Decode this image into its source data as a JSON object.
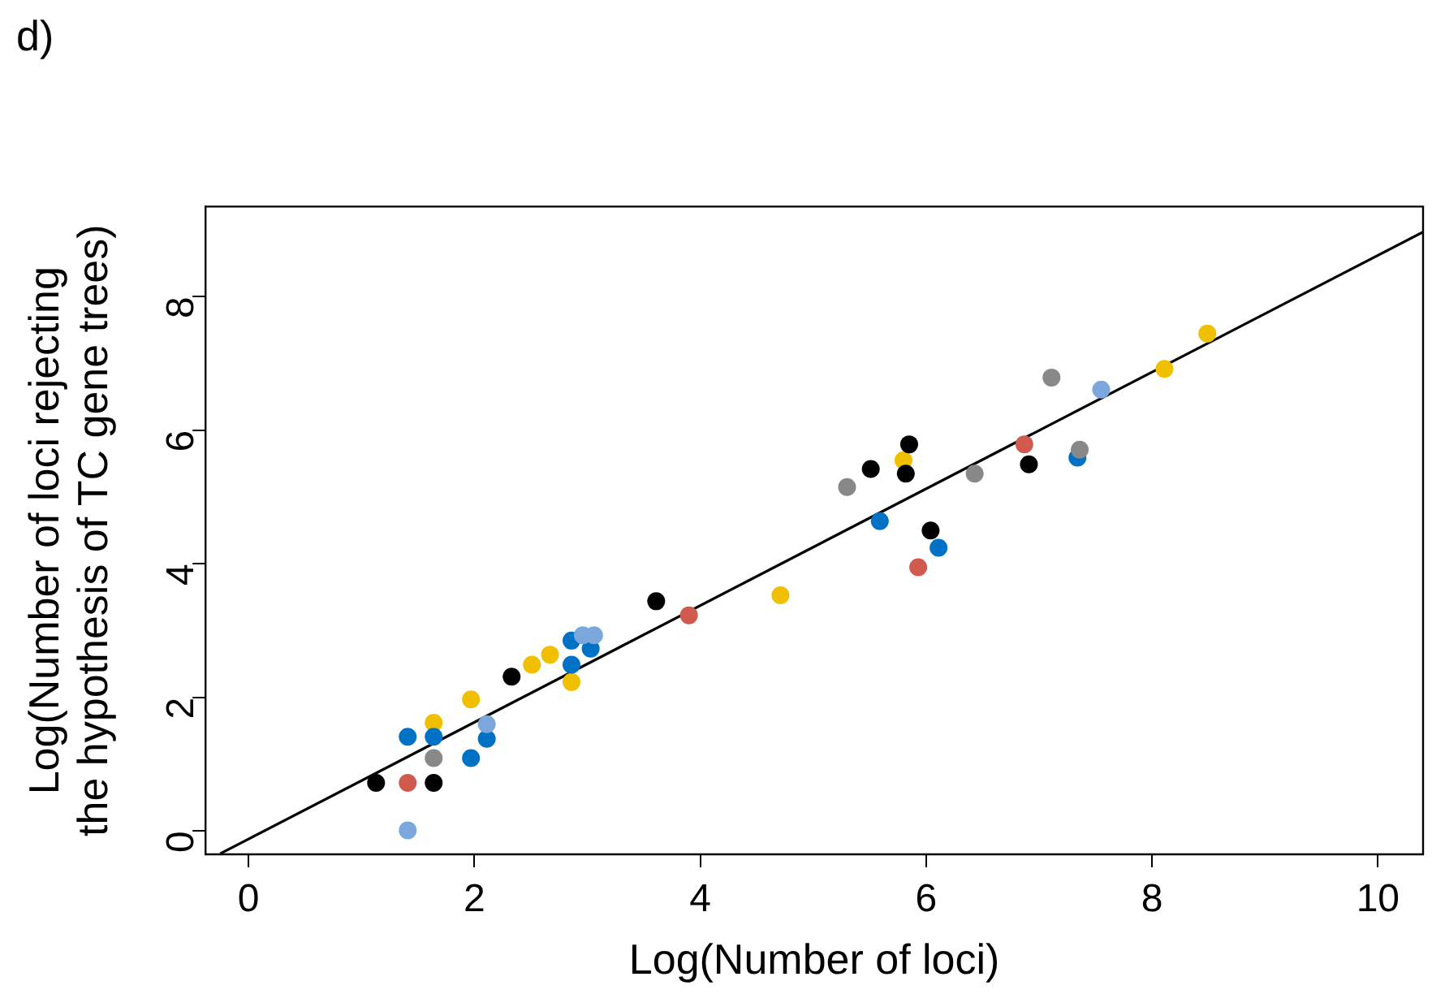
{
  "chart_data": {
    "type": "scatter",
    "title": "d)",
    "xlabel": "Log(Number of loci)",
    "ylabel": "Log(Number of loci rejecting\nthe hypothesis of TC gene trees)",
    "xlim": [
      -0.38,
      10.4
    ],
    "ylim": [
      -0.35,
      9.35
    ],
    "xticks": [
      0,
      2,
      4,
      6,
      8,
      10
    ],
    "yticks": [
      0,
      2,
      4,
      6,
      8
    ],
    "grid": false,
    "legend": false,
    "marker": "circle",
    "series": [
      {
        "color": "#000000",
        "x": [
          1.13,
          1.64,
          2.33,
          3.61,
          5.51,
          5.85,
          5.82,
          6.04,
          6.91
        ],
        "values": [
          0.72,
          0.72,
          2.31,
          3.44,
          5.42,
          5.79,
          5.35,
          4.5,
          5.49
        ]
      },
      {
        "color": "#888888",
        "x": [
          1.64,
          5.3,
          6.43,
          7.36,
          7.11
        ],
        "values": [
          1.09,
          5.15,
          5.35,
          5.71,
          6.79
        ]
      },
      {
        "color": "#d05a4e",
        "x": [
          1.41,
          3.9,
          5.93,
          6.87
        ],
        "values": [
          0.72,
          3.23,
          3.95,
          5.79
        ]
      },
      {
        "color": "#7ba7dd",
        "x": [
          1.41,
          2.11,
          2.96,
          3.06,
          7.55
        ],
        "values": [
          0.01,
          1.6,
          2.93,
          2.93,
          6.61
        ]
      },
      {
        "color": "#0072c6",
        "x": [
          1.41,
          1.64,
          1.97,
          2.11,
          2.86,
          2.86,
          3.03,
          5.59,
          6.11,
          7.34
        ],
        "values": [
          1.41,
          1.41,
          1.09,
          1.38,
          2.85,
          2.49,
          2.73,
          4.64,
          4.24,
          5.59
        ]
      },
      {
        "color": "#f0c000",
        "x": [
          1.64,
          1.97,
          2.51,
          2.67,
          2.86,
          4.71,
          5.8,
          8.11,
          8.49
        ],
        "values": [
          1.62,
          1.97,
          2.49,
          2.64,
          2.23,
          3.53,
          5.55,
          6.92,
          7.45
        ]
      },
      {
        "type": "line",
        "color": "#000000",
        "marker": "none",
        "x": [
          -0.25,
          10.4
        ],
        "values": [
          -0.34,
          8.97
        ]
      }
    ]
  }
}
